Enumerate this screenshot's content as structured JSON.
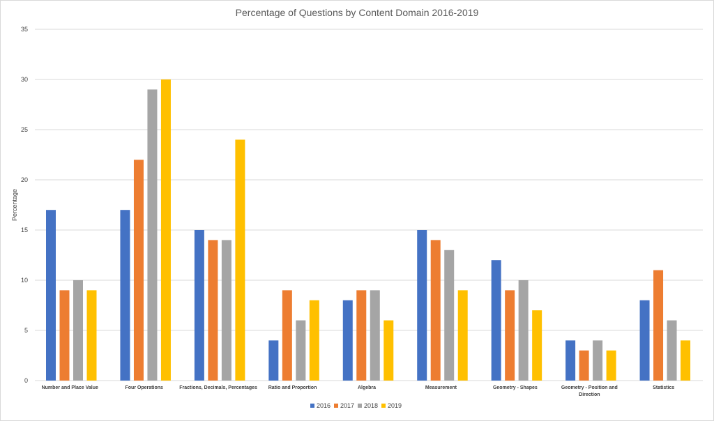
{
  "chart_data": {
    "type": "bar",
    "title": "Percentage of Questions by Content Domain 2016-2019",
    "ylabel": "Percentage",
    "xlabel": "",
    "ylim": [
      0,
      35
    ],
    "yticks": [
      0,
      5,
      10,
      15,
      20,
      25,
      30,
      35
    ],
    "grid": true,
    "legend_position": "bottom",
    "categories": [
      [
        "Number and Place Value"
      ],
      [
        "Four Operations"
      ],
      [
        "Fractions, Decimals, Percentages"
      ],
      [
        "Ratio and Proportion"
      ],
      [
        "Algebra"
      ],
      [
        "Measurement"
      ],
      [
        "Geometry - Shapes"
      ],
      [
        "Geometry - Position and",
        "Direction"
      ],
      [
        "Statistics"
      ]
    ],
    "series": [
      {
        "name": "2016",
        "color": "#4472C4",
        "values": [
          17,
          17,
          15,
          4,
          8,
          15,
          12,
          4,
          8
        ]
      },
      {
        "name": "2017",
        "color": "#ED7D31",
        "values": [
          9,
          22,
          14,
          9,
          9,
          14,
          9,
          3,
          11
        ]
      },
      {
        "name": "2018",
        "color": "#A5A5A5",
        "values": [
          10,
          29,
          14,
          6,
          9,
          13,
          10,
          4,
          6
        ]
      },
      {
        "name": "2019",
        "color": "#FFC000",
        "values": [
          9,
          30,
          24,
          8,
          6,
          9,
          7,
          3,
          4
        ]
      }
    ]
  }
}
